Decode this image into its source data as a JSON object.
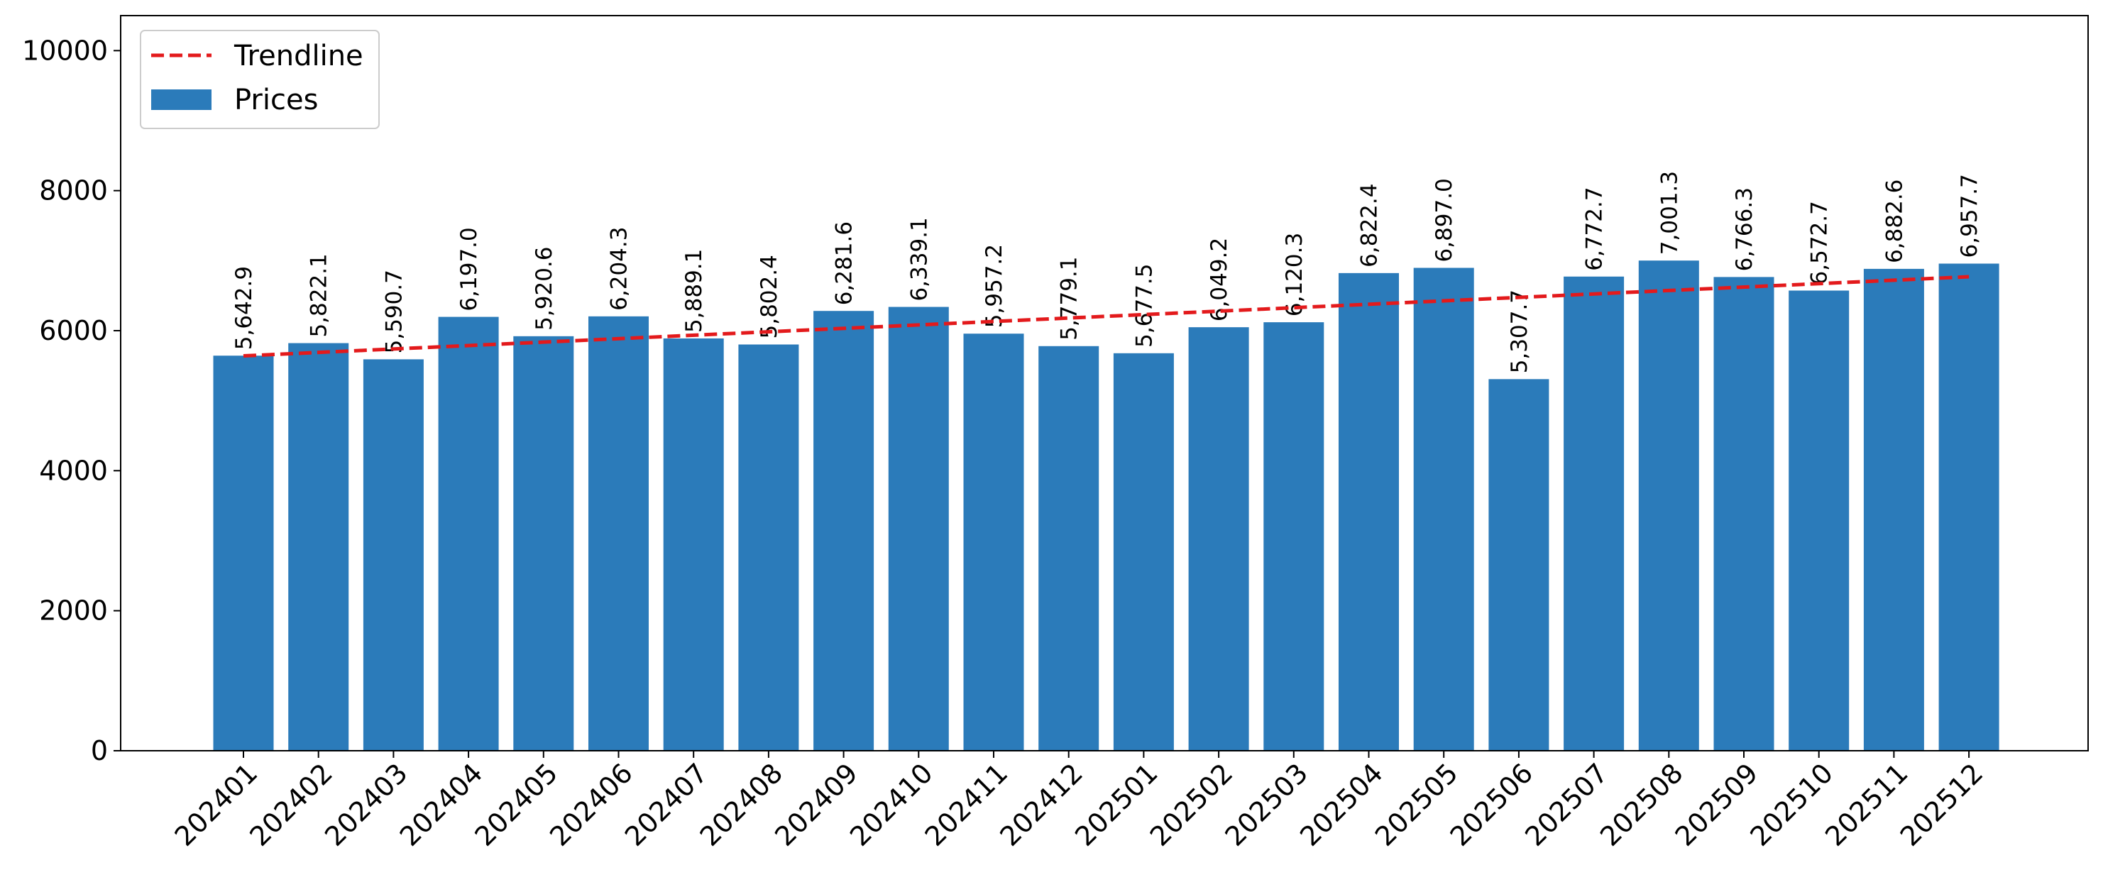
{
  "chart_data": {
    "type": "bar",
    "title": "",
    "xlabel": "",
    "ylabel": "",
    "ylim": [
      0,
      10500
    ],
    "yticks": [
      0,
      2000,
      4000,
      6000,
      8000,
      10000
    ],
    "grid": false,
    "legend_position": "top-left",
    "categories": [
      "202401",
      "202402",
      "202403",
      "202404",
      "202405",
      "202406",
      "202407",
      "202408",
      "202409",
      "202410",
      "202411",
      "202412",
      "202501",
      "202502",
      "202503",
      "202504",
      "202505",
      "202506",
      "202507",
      "202508",
      "202509",
      "202510",
      "202511",
      "202512"
    ],
    "series": [
      {
        "name": "Prices",
        "type": "bar",
        "color": "#2b7bba",
        "values": [
          5642.9,
          5822.1,
          5590.7,
          6197.0,
          5920.6,
          6204.3,
          5889.1,
          5802.4,
          6281.6,
          6339.1,
          5957.2,
          5779.1,
          5677.5,
          6049.2,
          6120.3,
          6822.4,
          6897.0,
          5307.7,
          6772.7,
          7001.3,
          6766.3,
          6572.7,
          6882.6,
          6957.7
        ],
        "labels": [
          "5,642.9",
          "5,822.1",
          "5,590.7",
          "6,197.0",
          "5,920.6",
          "6,204.3",
          "5,889.1",
          "5,802.4",
          "6,281.6",
          "6,339.1",
          "5,957.2",
          "5,779.1",
          "5,677.5",
          "6,049.2",
          "6,120.3",
          "6,822.4",
          "6,897.0",
          "5,307.7",
          "6,772.7",
          "7,001.3",
          "6,766.3",
          "6,572.7",
          "6,882.6",
          "6,957.7"
        ]
      },
      {
        "name": "Trendline",
        "type": "line",
        "style": "dashed",
        "color": "#e31a1c",
        "start": 5640,
        "end": 6770
      }
    ]
  }
}
